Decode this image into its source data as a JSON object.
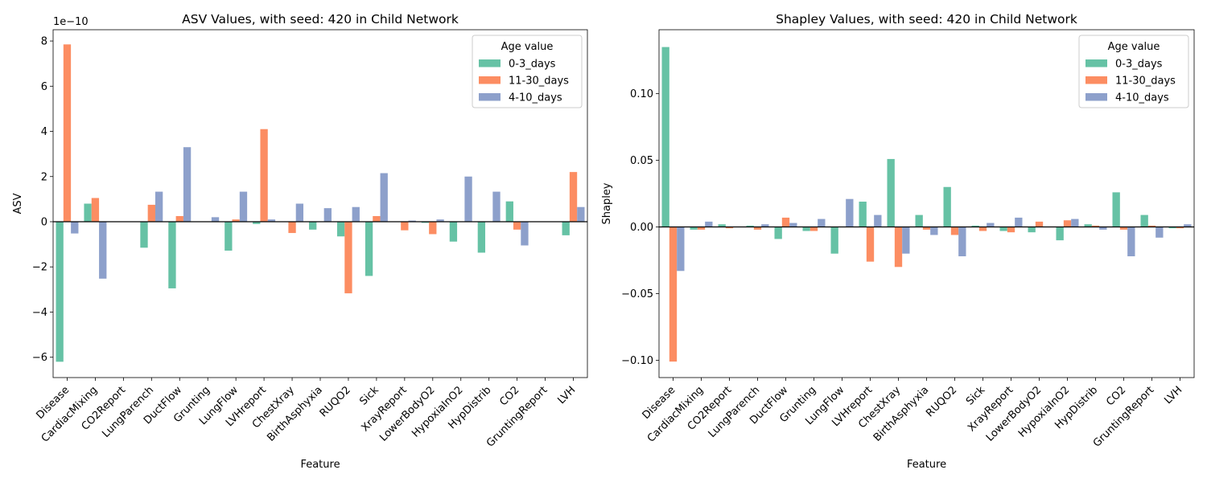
{
  "chart_data": [
    {
      "type": "bar",
      "title": "ASV Values, with seed: 420 in Child Network",
      "xlabel": "Feature",
      "ylabel": "ASV",
      "scale_label": "1e−10",
      "ylim": [
        -6.9,
        8.5
      ],
      "yticks": [
        -6,
        -4,
        -2,
        0,
        2,
        4,
        6,
        8
      ],
      "yticklabels": [
        "−6",
        "−4",
        "−2",
        "0",
        "2",
        "4",
        "6",
        "8"
      ],
      "legend_title": "Age value",
      "legend_position": "top-right",
      "categories": [
        "Disease",
        "CardiacMixing",
        "CO2Report",
        "LungParench",
        "DuctFlow",
        "Grunting",
        "LungFlow",
        "LVHreport",
        "ChestXray",
        "BirthAsphyxia",
        "RUQO2",
        "Sick",
        "XrayReport",
        "LowerBodyO2",
        "HypoxiaInO2",
        "HypDistrib",
        "CO2",
        "GruntingReport",
        "LVH"
      ],
      "series": [
        {
          "name": "0-3_days",
          "color": "#66c2a5",
          "values": [
            -6.2,
            0.8,
            0,
            -1.15,
            -2.95,
            0,
            -1.28,
            -0.1,
            0,
            -0.35,
            -0.65,
            -2.4,
            0,
            -0.05,
            -0.88,
            -1.37,
            0.9,
            0,
            -0.6
          ]
        },
        {
          "name": "11-30_days",
          "color": "#fc8d62",
          "values": [
            7.85,
            1.05,
            0,
            0.75,
            0.25,
            0,
            0.1,
            4.1,
            -0.5,
            0,
            -3.17,
            0.25,
            -0.38,
            -0.55,
            0,
            0,
            -0.35,
            0,
            2.2
          ]
        },
        {
          "name": "4-10_days",
          "color": "#8da0cb",
          "values": [
            -0.52,
            -2.52,
            0,
            1.33,
            3.3,
            0.2,
            1.33,
            0.1,
            0.8,
            0.6,
            0.65,
            2.15,
            0.05,
            0.1,
            2.0,
            1.33,
            -1.05,
            0,
            0.65
          ]
        }
      ]
    },
    {
      "type": "bar",
      "title": "Shapley Values, with seed: 420 in Child Network",
      "xlabel": "Feature",
      "ylabel": "Shapley",
      "ylim": [
        -0.113,
        0.148
      ],
      "yticks": [
        -0.1,
        -0.05,
        0.0,
        0.05,
        0.1
      ],
      "yticklabels": [
        "−0.10",
        "−0.05",
        "0.00",
        "0.05",
        "0.10"
      ],
      "legend_title": "Age value",
      "legend_position": "top-right",
      "categories": [
        "Disease",
        "CardiacMixing",
        "CO2Report",
        "LungParench",
        "DuctFlow",
        "Grunting",
        "LungFlow",
        "LVHreport",
        "ChestXray",
        "BirthAsphyxia",
        "RUQO2",
        "Sick",
        "XrayReport",
        "LowerBodyO2",
        "HypoxiaInO2",
        "HypDistrib",
        "CO2",
        "GruntingReport",
        "LVH"
      ],
      "series": [
        {
          "name": "0-3_days",
          "color": "#66c2a5",
          "values": [
            0.135,
            -0.002,
            0.002,
            0.001,
            -0.009,
            -0.003,
            -0.02,
            0.019,
            0.051,
            0.009,
            0.03,
            0.001,
            -0.003,
            -0.004,
            -0.01,
            0.002,
            0.026,
            0.009,
            -0.001
          ]
        },
        {
          "name": "11-30_days",
          "color": "#fc8d62",
          "values": [
            -0.101,
            -0.002,
            -0.001,
            -0.002,
            0.007,
            -0.003,
            0,
            -0.026,
            -0.03,
            -0.002,
            -0.006,
            -0.003,
            -0.004,
            0.004,
            0.005,
            0.001,
            -0.002,
            0.001,
            -0.001
          ]
        },
        {
          "name": "4-10_days",
          "color": "#8da0cb",
          "values": [
            -0.033,
            0.004,
            0,
            0.002,
            0.003,
            0.006,
            0.021,
            0.009,
            -0.02,
            -0.006,
            -0.022,
            0.003,
            0.007,
            0,
            0.006,
            -0.002,
            -0.022,
            -0.008,
            0.002
          ]
        }
      ]
    }
  ]
}
